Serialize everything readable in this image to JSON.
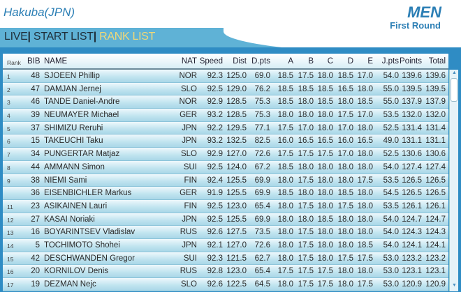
{
  "header": {
    "venue": "Hakuba(JPN)",
    "gender": "MEN",
    "round": "First Round"
  },
  "nav": {
    "live": "LIVE",
    "sep1": "|",
    "start_list": "START LIST",
    "sep2": "|",
    "rank_list": "RANK LIST",
    "active": "rank_list",
    "active_color": "#f0d878"
  },
  "table": {
    "columns": [
      "Rank",
      "BIB",
      "NAME",
      "NAT",
      "Speed",
      "Dist",
      "D.pts",
      "A",
      "B",
      "C",
      "D",
      "E",
      "J.pts",
      "Points",
      "Total"
    ],
    "rows": [
      [
        "1",
        "48",
        "SJOEEN Phillip",
        "NOR",
        "92.3",
        "125.0",
        "69.0",
        "18.5",
        "17.5",
        "18.0",
        "18.5",
        "17.0",
        "54.0",
        "139.6",
        "139.6"
      ],
      [
        "2",
        "47",
        "DAMJAN Jernej",
        "SLO",
        "92.5",
        "129.0",
        "76.2",
        "18.5",
        "18.5",
        "18.5",
        "16.5",
        "18.0",
        "55.0",
        "139.5",
        "139.5"
      ],
      [
        "3",
        "46",
        "TANDE Daniel-Andre",
        "NOR",
        "92.9",
        "128.5",
        "75.3",
        "18.5",
        "18.0",
        "18.5",
        "18.0",
        "18.5",
        "55.0",
        "137.9",
        "137.9"
      ],
      [
        "4",
        "39",
        "NEUMAYER Michael",
        "GER",
        "93.2",
        "128.5",
        "75.3",
        "18.0",
        "18.0",
        "18.0",
        "17.5",
        "17.0",
        "53.5",
        "132.0",
        "132.0"
      ],
      [
        "5",
        "37",
        "SHIMIZU Reruhi",
        "JPN",
        "92.2",
        "129.5",
        "77.1",
        "17.5",
        "17.0",
        "18.0",
        "17.0",
        "18.0",
        "52.5",
        "131.4",
        "131.4"
      ],
      [
        "6",
        "15",
        "TAKEUCHI Taku",
        "JPN",
        "93.2",
        "132.5",
        "82.5",
        "16.0",
        "16.5",
        "16.5",
        "16.0",
        "16.5",
        "49.0",
        "131.1",
        "131.1"
      ],
      [
        "7",
        "34",
        "PUNGERTAR Matjaz",
        "SLO",
        "92.9",
        "127.0",
        "72.6",
        "17.5",
        "17.5",
        "17.5",
        "17.0",
        "18.0",
        "52.5",
        "130.6",
        "130.6"
      ],
      [
        "8",
        "44",
        "AMMANN Simon",
        "SUI",
        "92.5",
        "124.0",
        "67.2",
        "18.5",
        "18.0",
        "18.0",
        "18.0",
        "18.0",
        "54.0",
        "127.4",
        "127.4"
      ],
      [
        "9",
        "38",
        "NIEMI Sami",
        "FIN",
        "92.4",
        "125.5",
        "69.9",
        "18.0",
        "17.5",
        "18.0",
        "18.0",
        "17.5",
        "53.5",
        "126.5",
        "126.5"
      ],
      [
        "",
        "36",
        "EISENBICHLER Markus",
        "GER",
        "91.9",
        "125.5",
        "69.9",
        "18.5",
        "18.0",
        "18.0",
        "18.5",
        "18.0",
        "54.5",
        "126.5",
        "126.5"
      ],
      [
        "11",
        "23",
        "ASIKAINEN Lauri",
        "FIN",
        "92.5",
        "123.0",
        "65.4",
        "18.0",
        "17.5",
        "18.0",
        "17.5",
        "18.0",
        "53.5",
        "126.1",
        "126.1"
      ],
      [
        "12",
        "27",
        "KASAI Noriaki",
        "JPN",
        "92.5",
        "125.5",
        "69.9",
        "18.0",
        "18.0",
        "18.5",
        "18.0",
        "18.0",
        "54.0",
        "124.7",
        "124.7"
      ],
      [
        "13",
        "16",
        "BOYARINTSEV Vladislav",
        "RUS",
        "92.6",
        "127.5",
        "73.5",
        "18.0",
        "17.5",
        "18.0",
        "18.0",
        "18.0",
        "54.0",
        "124.3",
        "124.3"
      ],
      [
        "14",
        "5",
        "TOCHIMOTO Shohei",
        "JPN",
        "92.1",
        "127.0",
        "72.6",
        "18.0",
        "17.5",
        "18.0",
        "18.0",
        "18.5",
        "54.0",
        "124.1",
        "124.1"
      ],
      [
        "15",
        "42",
        "DESCHWANDEN Gregor",
        "SUI",
        "92.3",
        "121.5",
        "62.7",
        "18.0",
        "17.5",
        "18.0",
        "17.5",
        "17.5",
        "53.0",
        "123.2",
        "123.2"
      ],
      [
        "16",
        "20",
        "KORNILOV Denis",
        "RUS",
        "92.8",
        "123.0",
        "65.4",
        "17.5",
        "17.5",
        "17.5",
        "18.0",
        "18.0",
        "53.0",
        "123.1",
        "123.1"
      ],
      [
        "17",
        "19",
        "DEZMAN Nejc",
        "SLO",
        "92.6",
        "122.5",
        "64.5",
        "18.0",
        "17.5",
        "17.5",
        "18.0",
        "17.5",
        "53.0",
        "120.9",
        "120.9"
      ]
    ]
  },
  "scrollbar": {
    "up_icon": "▲",
    "down_icon": "▼"
  }
}
